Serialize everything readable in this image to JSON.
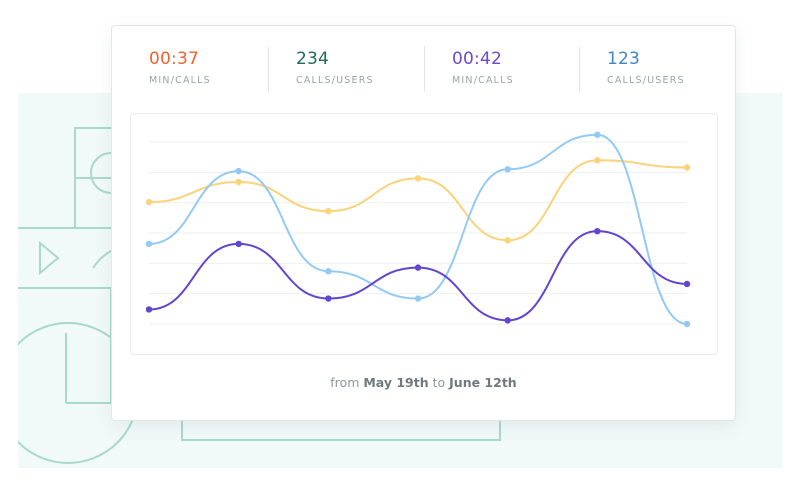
{
  "stats": [
    {
      "value": "00:37",
      "label": "MIN/CALLS",
      "color": "#f2622e"
    },
    {
      "value": "234",
      "label": "CALLS/USERS",
      "color": "#1f6b57"
    },
    {
      "value": "00:42",
      "label": "MIN/CALLS",
      "color": "#6a4bd0"
    },
    {
      "value": "123",
      "label": "CALLS/USERS",
      "color": "#3f86c7"
    }
  ],
  "caption": {
    "prefix": "from",
    "start": "May 19th",
    "joiner": "to",
    "end": "June 12th"
  },
  "chart_data": {
    "type": "line",
    "x": [
      1,
      2,
      3,
      4,
      5,
      6,
      7
    ],
    "grid": true,
    "ylim": [
      0,
      100
    ],
    "series": [
      {
        "color": "#fad37a",
        "values": [
          67,
          78,
          62,
          80,
          46,
          90,
          86
        ]
      },
      {
        "color": "#93caf3",
        "values": [
          44,
          84,
          29,
          14,
          85,
          104,
          0
        ]
      },
      {
        "color": "#6345d2",
        "values": [
          8,
          44,
          14,
          31,
          2,
          51,
          22
        ]
      }
    ]
  }
}
